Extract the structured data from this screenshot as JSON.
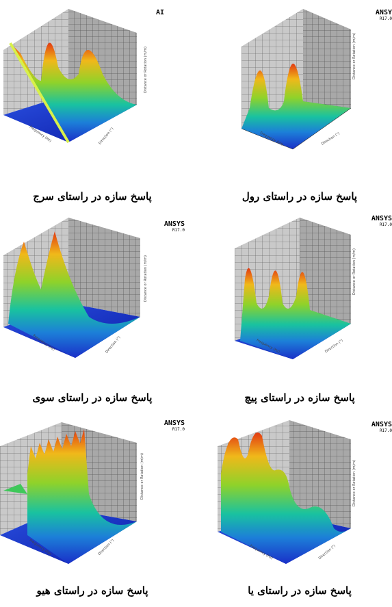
{
  "figure": {
    "logo_text": "ANSYS",
    "version": "R17.0",
    "logo_text_truncated_1": "ANSY",
    "logo_text_truncated_2": "AI",
    "axis_x_label": "Frequency (Hz)",
    "axis_y_label": "Direction (°)",
    "axis_z_label": "Distance or Rotation (m/m)",
    "panels": [
      {
        "id": "roll",
        "caption": "پاسخ سازه در راستای رول",
        "peaks": 2
      },
      {
        "id": "surge",
        "caption": "پاسخ سازه در راستای سرج",
        "peaks": 2
      },
      {
        "id": "pitch",
        "caption": "پاسخ سازه در راستای پیچ",
        "peaks": 3
      },
      {
        "id": "sway",
        "caption": "پاسخ سازه در راستای سوی",
        "peaks": 2
      },
      {
        "id": "yaw",
        "caption": "پاسخ سازه در راستای یا",
        "peaks": 4
      },
      {
        "id": "heave",
        "caption": "پاسخ سازه در راستای هیو",
        "peaks": 9
      }
    ]
  }
}
